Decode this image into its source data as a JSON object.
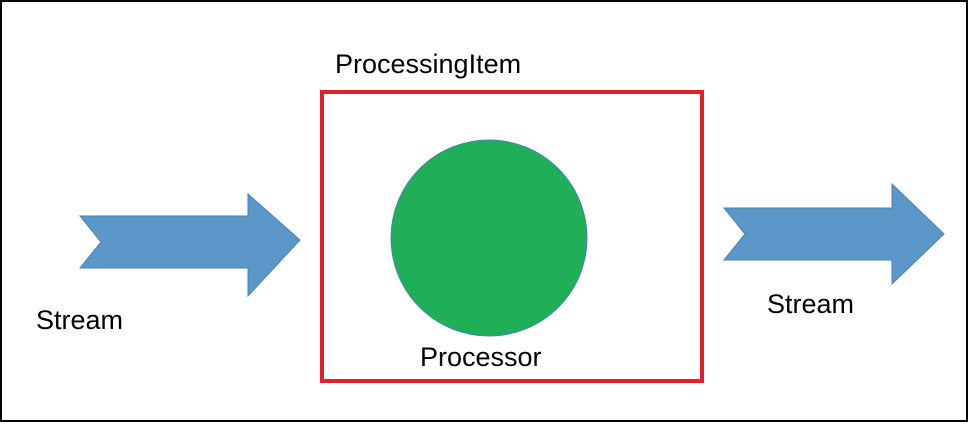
{
  "diagram": {
    "processing_item": {
      "title": "ProcessingItem",
      "border_color": "#e0202a"
    },
    "processor": {
      "label": "Processor",
      "fill_color": "#1faf57"
    },
    "input_stream": {
      "label": "Stream",
      "arrow_color": "#5b97c9",
      "icon": "chevron-arrow-right-icon"
    },
    "output_stream": {
      "label": "Stream",
      "arrow_color": "#5b97c9",
      "icon": "chevron-arrow-right-icon"
    }
  }
}
